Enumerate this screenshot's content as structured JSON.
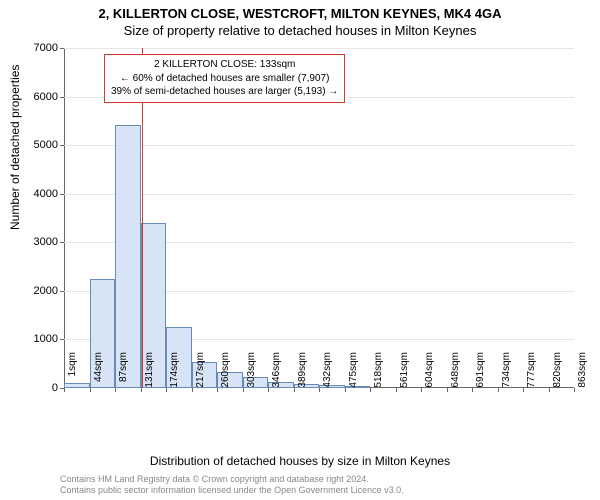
{
  "titles": {
    "main": "2, KILLERTON CLOSE, WESTCROFT, MILTON KEYNES, MK4 4GA",
    "sub": "Size of property relative to detached houses in Milton Keynes"
  },
  "axes": {
    "ylabel": "Number of detached properties",
    "xlabel": "Distribution of detached houses by size in Milton Keynes",
    "ylim": [
      0,
      7000
    ],
    "ytick_step": 1000,
    "x_tick_labels": [
      "1sqm",
      "44sqm",
      "87sqm",
      "131sqm",
      "174sqm",
      "217sqm",
      "260sqm",
      "303sqm",
      "346sqm",
      "389sqm",
      "432sqm",
      "475sqm",
      "518sqm",
      "561sqm",
      "604sqm",
      "648sqm",
      "691sqm",
      "734sqm",
      "777sqm",
      "820sqm",
      "863sqm"
    ]
  },
  "chart": {
    "type": "histogram",
    "bar_fill": "#d7e4f5",
    "bar_border": "#6a8ab8",
    "grid_color": "#e5e5e5",
    "background_color": "#ffffff",
    "values": [
      100,
      2250,
      5420,
      3400,
      1260,
      530,
      330,
      220,
      120,
      80,
      60,
      20,
      0,
      0,
      0,
      0,
      0,
      0,
      0,
      0
    ],
    "marker": {
      "sqm": 133,
      "color": "#d43a2f"
    }
  },
  "annotation": {
    "line1": "2 KILLERTON CLOSE: 133sqm",
    "line2": "← 60% of detached houses are smaller (7,907)",
    "line3": "39% of semi-detached houses are larger (5,193) →"
  },
  "footer": {
    "line1": "Contains HM Land Registry data © Crown copyright and database right 2024.",
    "line2": "Contains public sector information licensed under the Open Government Licence v3.0."
  }
}
